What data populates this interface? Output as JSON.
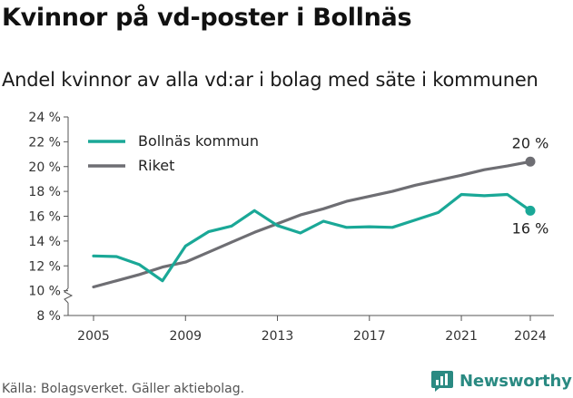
{
  "header": {
    "title": "Kvinnor på vd-poster i Bollnäs",
    "subtitle": "Andel kvinnor av alla vd:ar i bolag med säte i kommunen"
  },
  "footer": {
    "source": "Källa: Bolagsverket. Gäller aktiebolag.",
    "brand": "Newsworthy"
  },
  "colors": {
    "bollnas": "#1aa897",
    "riket": "#6e6e73",
    "brand": "#2a8a82"
  },
  "chart_data": {
    "type": "line",
    "x": [
      2005,
      2006,
      2007,
      2008,
      2009,
      2010,
      2011,
      2012,
      2013,
      2014,
      2015,
      2016,
      2017,
      2018,
      2019,
      2020,
      2021,
      2022,
      2023,
      2024
    ],
    "series": [
      {
        "name": "Bollnäs kommun",
        "values": [
          12.8,
          12.75,
          12.1,
          10.8,
          13.6,
          14.75,
          15.2,
          16.45,
          15.25,
          14.65,
          15.6,
          15.1,
          15.15,
          15.1,
          15.7,
          16.3,
          17.75,
          17.65,
          17.75,
          16.45
        ],
        "end_label": "16 %"
      },
      {
        "name": "Riket",
        "values": [
          10.3,
          10.8,
          11.3,
          11.9,
          12.3,
          13.1,
          13.9,
          14.7,
          15.4,
          16.1,
          16.6,
          17.2,
          17.6,
          18.0,
          18.5,
          18.9,
          19.3,
          19.75,
          20.05,
          20.4
        ],
        "end_label": "20 %"
      }
    ],
    "y_ticks": [
      "8 %",
      "10 %",
      "12 %",
      "14 %",
      "16 %",
      "18 %",
      "20 %",
      "22 %",
      "24 %"
    ],
    "y_tick_values": [
      8,
      10,
      12,
      14,
      16,
      18,
      20,
      22,
      24
    ],
    "x_ticks": [
      "2005",
      "2009",
      "2013",
      "2017",
      "2021",
      "2024"
    ],
    "x_tick_values": [
      2005,
      2009,
      2013,
      2017,
      2021,
      2024
    ],
    "ylim": [
      8,
      24
    ],
    "xlim": [
      2005,
      2024
    ],
    "axis_break": true,
    "grid": false,
    "legend": "top-left"
  }
}
